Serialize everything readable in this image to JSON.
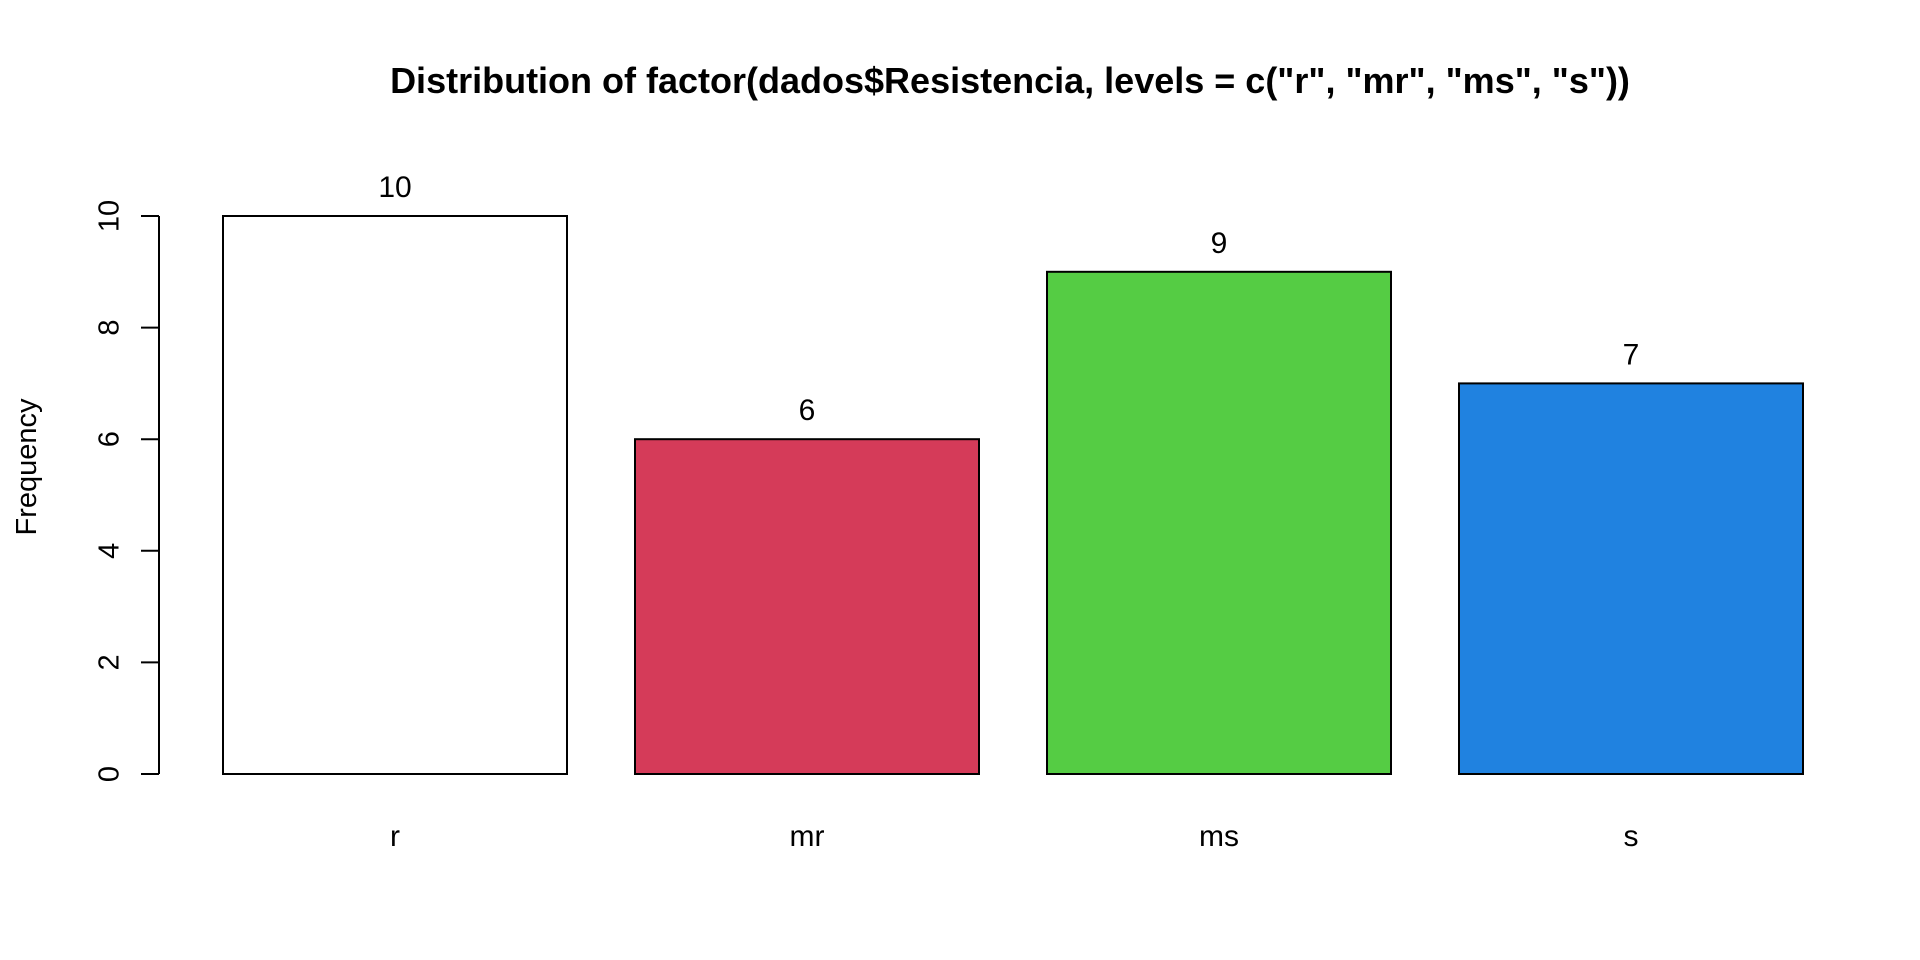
{
  "chart_data": {
    "type": "bar",
    "title": "Distribution of factor(dados$Resistencia, levels = c(\"r\", \"mr\", \"ms\", \"s\"))",
    "xlabel": "",
    "ylabel": "Frequency",
    "categories": [
      "r",
      "mr",
      "ms",
      "s"
    ],
    "values": [
      10,
      6,
      9,
      7
    ],
    "data_labels": [
      "10",
      "6",
      "9",
      "7"
    ],
    "colors": [
      "#FFFFFF",
      "#D53B59",
      "#55CC44",
      "#2082E0"
    ],
    "ylim": [
      0,
      10
    ],
    "yticks": [
      0,
      2,
      4,
      6,
      8,
      10
    ],
    "ytick_labels": [
      "0",
      "2",
      "4",
      "6",
      "8",
      "10"
    ],
    "grid": false,
    "legend": "none"
  }
}
